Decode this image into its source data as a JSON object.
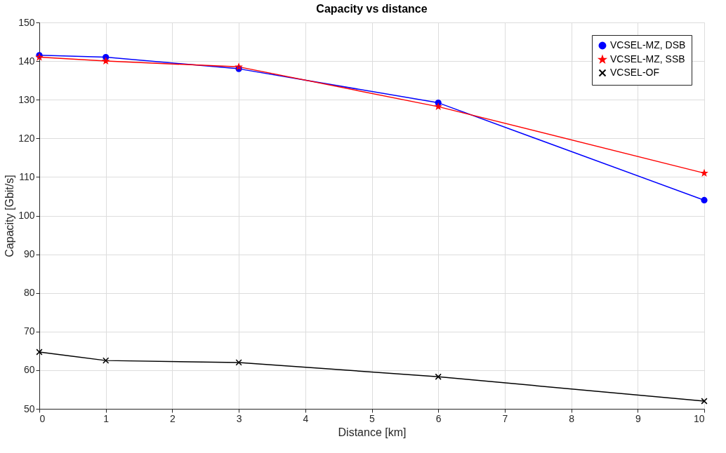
{
  "chart_data": {
    "type": "line",
    "title": "Capacity vs distance",
    "xlabel": "Distance [km]",
    "ylabel": "Capacity [Gbit/s]",
    "x": [
      0,
      1,
      3,
      6,
      10
    ],
    "series": [
      {
        "name": "VCSEL-MZ, DSB",
        "color": "#0000ff",
        "marker": "circle",
        "values": [
          141.5,
          141,
          138,
          129.2,
          104
        ]
      },
      {
        "name": "VCSEL-MZ, SSB",
        "color": "#ff0000",
        "marker": "star",
        "values": [
          141,
          140,
          138.5,
          128.2,
          111
        ]
      },
      {
        "name": "VCSEL-OF",
        "color": "#000000",
        "marker": "cross",
        "values": [
          64.7,
          62.5,
          62,
          58.3,
          52
        ]
      }
    ],
    "xlim": [
      0,
      10
    ],
    "xticks": [
      0,
      1,
      2,
      3,
      4,
      5,
      6,
      7,
      8,
      9,
      10
    ],
    "ylim": [
      50,
      150
    ],
    "yticks": [
      50,
      60,
      70,
      80,
      90,
      100,
      110,
      120,
      130,
      140,
      150
    ],
    "grid": true,
    "legend": "top right",
    "line_style": "solid"
  }
}
